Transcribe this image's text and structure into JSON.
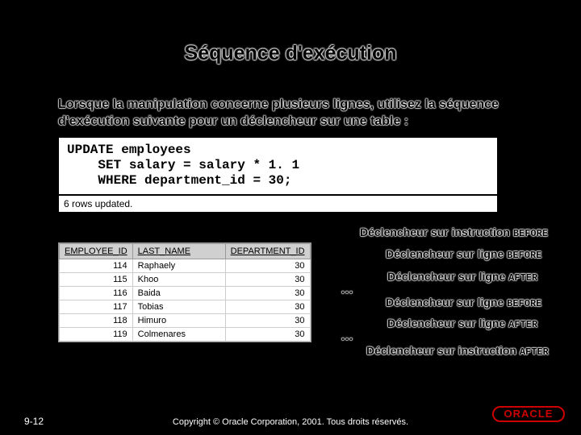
{
  "title": "Séquence d'exécution",
  "intro": "Lorsque la manipulation concerne plusieurs lignes, utilisez la séquence d'exécution suivante pour un déclencheur sur une table :",
  "code": "UPDATE employees\n    SET salary = salary * 1. 1\n    WHERE department_id = 30;",
  "result": "6 rows updated.",
  "table": {
    "columns": [
      "EMPLOYEE_ID",
      "LAST_NAME",
      "DEPARTMENT_ID"
    ],
    "rows": [
      [
        114,
        "Raphaely",
        30
      ],
      [
        115,
        "Khoo",
        30
      ],
      [
        116,
        "Baida",
        30
      ],
      [
        117,
        "Tobias",
        30
      ],
      [
        118,
        "Himuro",
        30
      ],
      [
        119,
        "Colmenares",
        30
      ]
    ]
  },
  "triggers": {
    "stmt_before": "Déclencheur sur instruction",
    "row_before": "Déclencheur sur ligne",
    "row_after": "Déclencheur sur ligne",
    "row_before2": "Déclencheur sur ligne",
    "row_after2": "Déclencheur sur ligne",
    "stmt_after": "Déclencheur sur instruction",
    "kw_before": "BEFORE",
    "kw_after": "AFTER",
    "ellipsis": "…"
  },
  "footer": {
    "page": "9-12",
    "copyright": "Copyright © Oracle Corporation, 2001. Tous droits réservés.",
    "logo": "ORACLE"
  },
  "colors": {
    "background": "#000000",
    "text_light": "#ffffff",
    "oracle_red": "#cc0000",
    "table_header_bg": "#d0d0d0",
    "table_border": "#999999"
  }
}
